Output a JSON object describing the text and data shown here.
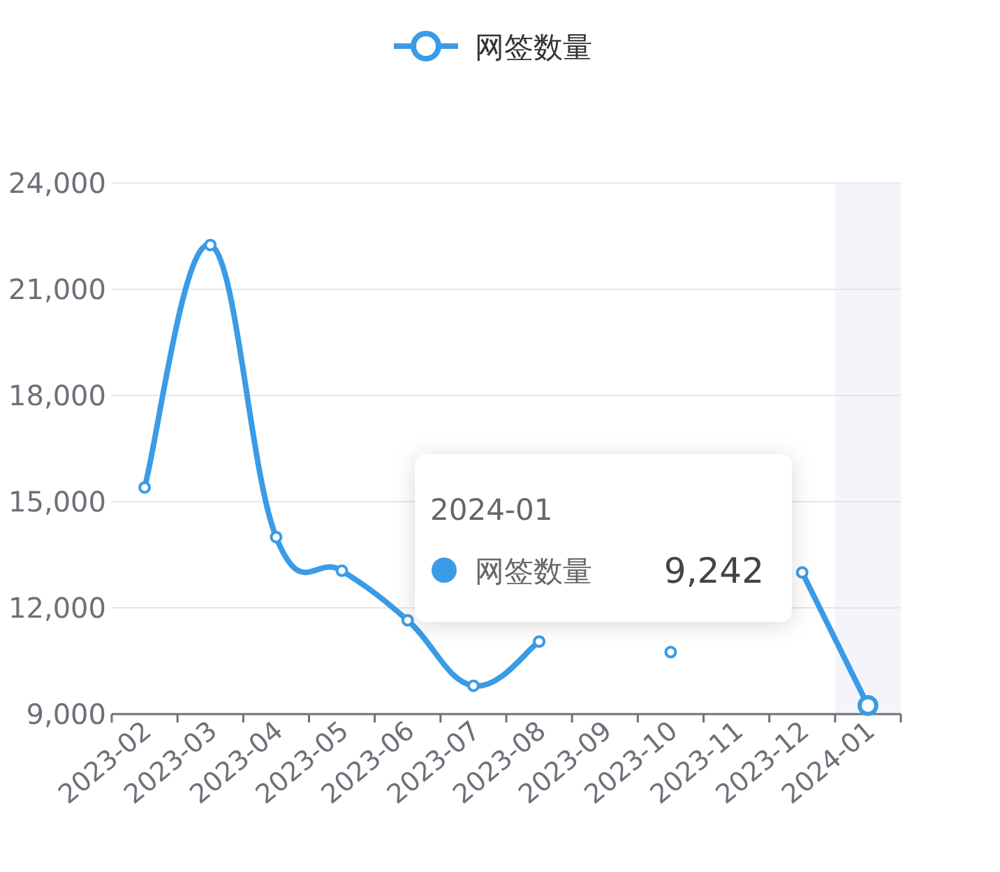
{
  "chart_data": {
    "type": "line",
    "categories": [
      "2023-02",
      "2023-03",
      "2023-04",
      "2023-05",
      "2023-06",
      "2023-07",
      "2023-08",
      "2023-09",
      "2023-10",
      "2023-11",
      "2023-12",
      "2024-01"
    ],
    "series": [
      {
        "name": "网签数量",
        "color": "#3a9be6",
        "values": [
          15400,
          22250,
          14000,
          13050,
          11650,
          9800,
          11050,
          null,
          10750,
          null,
          13000,
          9242
        ]
      }
    ],
    "ylim": [
      9000,
      24000
    ],
    "yticks": [
      {
        "value": 9000,
        "label": "9,000"
      },
      {
        "value": 12000,
        "label": "12,000"
      },
      {
        "value": 15000,
        "label": "15,000"
      },
      {
        "value": 18000,
        "label": "18,000"
      },
      {
        "value": 21000,
        "label": "21,000"
      },
      {
        "value": 24000,
        "label": "24,000"
      }
    ],
    "grid": "y",
    "legend": "top",
    "marker": "circle",
    "line_style": "solid",
    "bands": [
      {
        "axis": "x",
        "from": "2024-01",
        "to": "2024-01",
        "color": "#f3f5fa"
      }
    ],
    "annotations": [
      "2024-01",
      "网签数量",
      "9,242"
    ]
  }
}
